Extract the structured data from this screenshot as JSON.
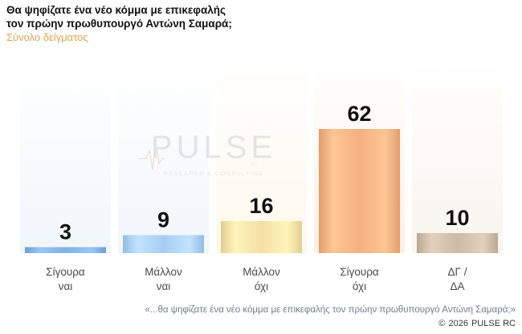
{
  "title_lines": [
    "Θα ψηφίζατε ένα νέο κόμμα με επικεφαλής",
    "τον πρώην πρωθυπουργό Αντώνη Σαμαρά;"
  ],
  "subtitle": "Σύνολο δείγματος",
  "watermark": {
    "brand": "PULSE",
    "tagline": "RESEARCH & CONSULTING",
    "small": "RC"
  },
  "chart_data": {
    "type": "bar",
    "categories": [
      [
        "Σίγουρα",
        "ναι"
      ],
      [
        "Μάλλον",
        "ναι"
      ],
      [
        "Μάλλον",
        "όχι"
      ],
      [
        "Σίγουρα",
        "όχι"
      ],
      [
        "ΔΓ /",
        "ΔΑ"
      ]
    ],
    "values": [
      3,
      9,
      16,
      62,
      10
    ],
    "ylim": [
      0,
      100
    ],
    "grid": false,
    "legend": "none",
    "colors": {
      "bars": [
        "#7fb2e3",
        "#a9cdf2",
        "#f3dfa3",
        "#f3b07f",
        "#cbbba6"
      ],
      "columns": [
        "#f1f6fb",
        "#f1f6fb",
        "#fdf8ec",
        "#fdf1e6",
        "#f9f4ee"
      ],
      "value_label": "#111111",
      "category_label": "#4a4a4a"
    }
  },
  "footer": {
    "question": "«...θα ψηφίζατε ένα νέο κόμμα με επικεφαλής τον πρώην πρωθυπουργό Αντώνη Σαμαρά;»",
    "copyright_symbol": "©",
    "year": "2026",
    "brand": "PULSE RC"
  }
}
